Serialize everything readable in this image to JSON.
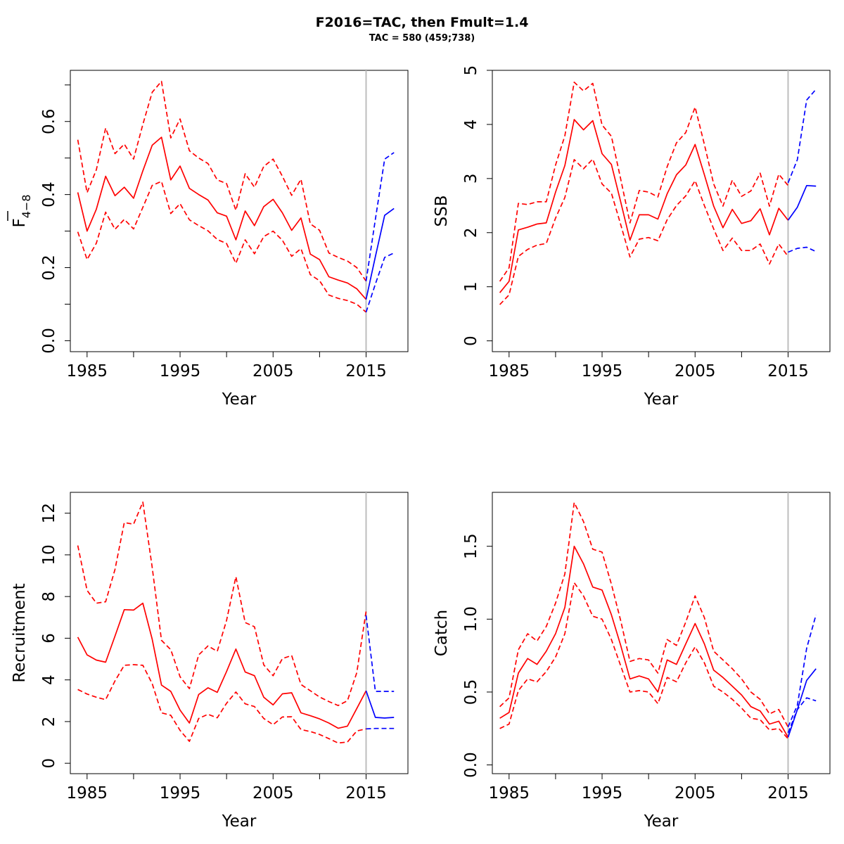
{
  "figure": {
    "title": "F2016=TAC, then Fmult=1.4",
    "subtitle": "TAC = 580 (459;738)"
  },
  "colors": {
    "history": "#ff0000",
    "forecast": "#0000ff",
    "divider": "#bebebe",
    "axis": "#000000"
  },
  "chart_data": [
    {
      "type": "line",
      "panel": "top-left",
      "ylabel_main": "F",
      "ylabel_sub": "4−8",
      "xlabel": "Year",
      "xlim": [
        1983.2,
        2019.5
      ],
      "ylim": [
        -0.03,
        0.74
      ],
      "xticks": [
        1985,
        1995,
        2005,
        2015
      ],
      "xminor": [
        1990,
        2000,
        2010
      ],
      "yticks": [
        0.0,
        0.2,
        0.4,
        0.6
      ],
      "ytick_labels": [
        "0.0",
        "0.2",
        "0.4",
        "0.6"
      ],
      "yminor": [
        0.1,
        0.3,
        0.5,
        0.7
      ],
      "vline": 2015,
      "history_x": [
        1984,
        1985,
        1986,
        1987,
        1988,
        1989,
        1990,
        1991,
        1992,
        1993,
        1994,
        1995,
        1996,
        1997,
        1998,
        1999,
        2000,
        2001,
        2002,
        2003,
        2004,
        2005,
        2006,
        2007,
        2008,
        2009,
        2010,
        2011,
        2012,
        2013,
        2014,
        2015
      ],
      "history_series": [
        {
          "name": "",
          "style": "solid",
          "values": [
            0.406,
            0.3,
            0.36,
            0.45,
            0.397,
            0.42,
            0.39,
            0.465,
            0.535,
            0.557,
            0.44,
            0.478,
            0.417,
            0.4,
            0.385,
            0.35,
            0.341,
            0.276,
            0.355,
            0.315,
            0.367,
            0.387,
            0.35,
            0.302,
            0.336,
            0.237,
            0.222,
            0.175,
            0.166,
            0.158,
            0.142,
            0.113
          ]
        },
        {
          "name": "",
          "style": "dashed",
          "values": [
            0.55,
            0.405,
            0.468,
            0.582,
            0.512,
            0.538,
            0.497,
            0.592,
            0.68,
            0.71,
            0.555,
            0.607,
            0.52,
            0.5,
            0.485,
            0.44,
            0.43,
            0.357,
            0.457,
            0.42,
            0.477,
            0.497,
            0.45,
            0.398,
            0.442,
            0.32,
            0.302,
            0.24,
            0.228,
            0.218,
            0.2,
            0.163
          ]
        },
        {
          "name": "",
          "style": "dashed",
          "values": [
            0.298,
            0.222,
            0.267,
            0.352,
            0.305,
            0.332,
            0.306,
            0.365,
            0.425,
            0.436,
            0.348,
            0.375,
            0.331,
            0.315,
            0.301,
            0.277,
            0.266,
            0.212,
            0.276,
            0.238,
            0.285,
            0.3,
            0.275,
            0.231,
            0.252,
            0.181,
            0.164,
            0.125,
            0.116,
            0.11,
            0.1,
            0.078
          ]
        }
      ],
      "forecast_x": [
        2015,
        2016,
        2017,
        2018
      ],
      "forecast_series": [
        {
          "name": "",
          "style": "solid",
          "values": [
            0.113,
            0.23,
            0.343,
            0.362
          ]
        },
        {
          "name": "",
          "style": "dashed",
          "values": [
            0.163,
            0.332,
            0.497,
            0.515
          ]
        },
        {
          "name": "",
          "style": "dashed",
          "values": [
            0.078,
            0.155,
            0.228,
            0.24
          ]
        }
      ]
    },
    {
      "type": "line",
      "panel": "top-right",
      "ylabel_main": "SSB",
      "ylabel_sub": "",
      "xlabel": "Year",
      "xlim": [
        1983.2,
        2019.5
      ],
      "ylim": [
        -0.2,
        5.0
      ],
      "xticks": [
        1985,
        1995,
        2005,
        2015
      ],
      "xminor": [
        1990,
        2000,
        2010
      ],
      "yticks": [
        0,
        1,
        2,
        3,
        4,
        5
      ],
      "ytick_labels": [
        "0",
        "1",
        "2",
        "3",
        "4",
        "5"
      ],
      "yminor": [],
      "vline": 2015,
      "history_x": [
        1984,
        1985,
        1986,
        1987,
        1988,
        1989,
        1990,
        1991,
        1992,
        1993,
        1994,
        1995,
        1996,
        1997,
        1998,
        1999,
        2000,
        2001,
        2002,
        2003,
        2004,
        2005,
        2006,
        2007,
        2008,
        2009,
        2010,
        2011,
        2012,
        2013,
        2014,
        2015
      ],
      "history_series": [
        {
          "name": "",
          "style": "solid",
          "values": [
            0.89,
            1.1,
            2.05,
            2.1,
            2.16,
            2.18,
            2.75,
            3.24,
            4.09,
            3.9,
            4.07,
            3.46,
            3.26,
            2.57,
            1.86,
            2.33,
            2.33,
            2.25,
            2.72,
            3.07,
            3.25,
            3.63,
            3.07,
            2.49,
            2.09,
            2.43,
            2.17,
            2.22,
            2.44,
            1.96,
            2.45,
            2.23
          ]
        },
        {
          "name": "",
          "style": "dashed",
          "values": [
            1.1,
            1.35,
            2.54,
            2.52,
            2.57,
            2.57,
            3.25,
            3.79,
            4.78,
            4.62,
            4.76,
            3.99,
            3.78,
            2.99,
            2.18,
            2.78,
            2.75,
            2.66,
            3.22,
            3.66,
            3.85,
            4.32,
            3.63,
            2.9,
            2.49,
            2.97,
            2.67,
            2.77,
            3.1,
            2.49,
            3.08,
            2.87
          ]
        },
        {
          "name": "",
          "style": "dashed",
          "values": [
            0.67,
            0.85,
            1.56,
            1.69,
            1.77,
            1.8,
            2.27,
            2.65,
            3.35,
            3.18,
            3.36,
            2.9,
            2.73,
            2.15,
            1.55,
            1.88,
            1.91,
            1.85,
            2.24,
            2.5,
            2.68,
            2.96,
            2.5,
            2.07,
            1.67,
            1.9,
            1.67,
            1.67,
            1.79,
            1.42,
            1.79,
            1.56
          ]
        }
      ],
      "forecast_x": [
        2015,
        2016,
        2017,
        2018
      ],
      "forecast_series": [
        {
          "name": "",
          "style": "solid",
          "values": [
            2.23,
            2.47,
            2.87,
            2.86
          ]
        },
        {
          "name": "",
          "style": "dashed",
          "values": [
            2.92,
            3.35,
            4.45,
            4.65
          ]
        },
        {
          "name": "",
          "style": "dashed",
          "values": [
            1.64,
            1.71,
            1.73,
            1.65
          ]
        }
      ]
    },
    {
      "type": "line",
      "panel": "bottom-left",
      "ylabel_main": "Recruitment",
      "ylabel_sub": "",
      "xlabel": "Year",
      "xlim": [
        1983.2,
        2019.5
      ],
      "ylim": [
        -0.5,
        13.0
      ],
      "xticks": [
        1985,
        1995,
        2005,
        2015
      ],
      "xminor": [
        1990,
        2000,
        2010
      ],
      "yticks": [
        0,
        2,
        4,
        6,
        8,
        10,
        12
      ],
      "ytick_labels": [
        "0",
        "2",
        "4",
        "6",
        "8",
        "10",
        "12"
      ],
      "yminor": [],
      "vline": 2015,
      "history_x": [
        1984,
        1985,
        1986,
        1987,
        1988,
        1989,
        1990,
        1991,
        1992,
        1993,
        1994,
        1995,
        1996,
        1997,
        1998,
        1999,
        2000,
        2001,
        2002,
        2003,
        2004,
        2005,
        2006,
        2007,
        2008,
        2009,
        2010,
        2011,
        2012,
        2013,
        2014,
        2015
      ],
      "history_series": [
        {
          "name": "",
          "style": "solid",
          "values": [
            6.05,
            5.2,
            4.95,
            4.85,
            6.1,
            7.37,
            7.35,
            7.68,
            5.95,
            3.75,
            3.45,
            2.55,
            1.93,
            3.3,
            3.62,
            3.4,
            4.4,
            5.48,
            4.38,
            4.2,
            3.17,
            2.8,
            3.33,
            3.38,
            2.42,
            2.28,
            2.13,
            1.93,
            1.68,
            1.78,
            2.63,
            3.48
          ]
        },
        {
          "name": "",
          "style": "dashed",
          "values": [
            10.45,
            8.3,
            7.68,
            7.75,
            9.3,
            11.55,
            11.47,
            12.53,
            9.4,
            5.9,
            5.45,
            4.15,
            3.58,
            5.2,
            5.63,
            5.37,
            6.85,
            8.95,
            6.75,
            6.55,
            4.72,
            4.2,
            5.02,
            5.17,
            3.78,
            3.48,
            3.18,
            2.96,
            2.77,
            3.0,
            4.35,
            7.3
          ]
        },
        {
          "name": "",
          "style": "dashed",
          "values": [
            3.54,
            3.32,
            3.17,
            3.05,
            3.95,
            4.7,
            4.73,
            4.7,
            3.82,
            2.42,
            2.3,
            1.58,
            1.05,
            2.15,
            2.35,
            2.18,
            2.88,
            3.42,
            2.85,
            2.72,
            2.15,
            1.85,
            2.22,
            2.23,
            1.62,
            1.52,
            1.38,
            1.18,
            0.97,
            1.02,
            1.55,
            1.65
          ]
        }
      ],
      "forecast_x": [
        2015,
        2016,
        2017,
        2018
      ],
      "forecast_series": [
        {
          "name": "",
          "style": "solid",
          "values": [
            3.48,
            2.2,
            2.17,
            2.2
          ]
        },
        {
          "name": "",
          "style": "dashed",
          "values": [
            7.1,
            3.45,
            3.45,
            3.45
          ]
        },
        {
          "name": "",
          "style": "dashed",
          "values": [
            1.65,
            1.67,
            1.67,
            1.67
          ]
        }
      ]
    },
    {
      "type": "line",
      "panel": "bottom-right",
      "ylabel_main": "Catch",
      "ylabel_sub": "",
      "xlabel": "Year",
      "xlim": [
        1983.2,
        2019.5
      ],
      "ylim": [
        -0.06,
        1.87
      ],
      "xticks": [
        1985,
        1995,
        2005,
        2015
      ],
      "xminor": [
        1990,
        2000,
        2010
      ],
      "yticks": [
        0.0,
        0.5,
        1.0,
        1.5
      ],
      "ytick_labels": [
        "0.0",
        "0.5",
        "1.0",
        "1.5"
      ],
      "yminor": [],
      "vline": 2015,
      "history_x": [
        1984,
        1985,
        1986,
        1987,
        1988,
        1989,
        1990,
        1991,
        1992,
        1993,
        1994,
        1995,
        1996,
        1997,
        1998,
        1999,
        2000,
        2001,
        2002,
        2003,
        2004,
        2005,
        2006,
        2007,
        2008,
        2009,
        2010,
        2011,
        2012,
        2013,
        2014,
        2015
      ],
      "history_series": [
        {
          "name": "",
          "style": "solid",
          "values": [
            0.32,
            0.36,
            0.63,
            0.73,
            0.69,
            0.78,
            0.9,
            1.08,
            1.5,
            1.38,
            1.22,
            1.2,
            1.03,
            0.82,
            0.59,
            0.61,
            0.59,
            0.5,
            0.72,
            0.69,
            0.83,
            0.97,
            0.83,
            0.65,
            0.6,
            0.54,
            0.48,
            0.4,
            0.37,
            0.28,
            0.3,
            0.19
          ]
        },
        {
          "name": "",
          "style": "dashed",
          "values": [
            0.4,
            0.46,
            0.79,
            0.9,
            0.85,
            0.95,
            1.11,
            1.31,
            1.8,
            1.67,
            1.48,
            1.46,
            1.24,
            0.99,
            0.71,
            0.73,
            0.72,
            0.63,
            0.86,
            0.82,
            0.98,
            1.16,
            1.01,
            0.78,
            0.72,
            0.66,
            0.59,
            0.5,
            0.45,
            0.35,
            0.38,
            0.26
          ]
        },
        {
          "name": "",
          "style": "dashed",
          "values": [
            0.25,
            0.28,
            0.51,
            0.59,
            0.57,
            0.64,
            0.74,
            0.9,
            1.25,
            1.16,
            1.02,
            1.0,
            0.86,
            0.68,
            0.5,
            0.51,
            0.5,
            0.42,
            0.6,
            0.57,
            0.7,
            0.81,
            0.7,
            0.54,
            0.5,
            0.45,
            0.39,
            0.32,
            0.31,
            0.24,
            0.25,
            0.18
          ]
        }
      ],
      "forecast_x": [
        2015,
        2016,
        2017,
        2018
      ],
      "forecast_series": [
        {
          "name": "",
          "style": "solid",
          "values": [
            0.19,
            0.38,
            0.58,
            0.66
          ]
        },
        {
          "name": "",
          "style": "dashed",
          "values": [
            0.26,
            0.41,
            0.8,
            1.03
          ]
        },
        {
          "name": "",
          "style": "dashed",
          "values": [
            0.22,
            0.38,
            0.46,
            0.44
          ]
        }
      ]
    }
  ]
}
